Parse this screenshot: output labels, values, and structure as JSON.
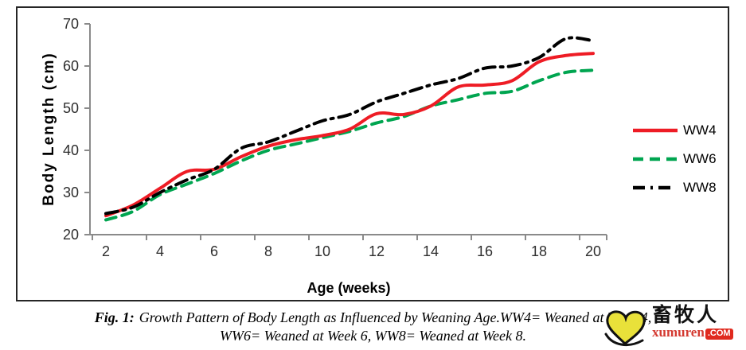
{
  "chart_data": {
    "type": "line",
    "title": "",
    "xlabel": "Age (weeks)",
    "ylabel": "Body Length (cm)",
    "x": [
      2,
      3,
      4,
      5,
      6,
      7,
      8,
      9,
      10,
      11,
      12,
      13,
      14,
      15,
      16,
      17,
      18,
      19,
      20
    ],
    "x_tick_labels": [
      "2",
      "4",
      "6",
      "8",
      "10",
      "12",
      "14",
      "16",
      "18",
      "20"
    ],
    "yticks": [
      20,
      30,
      40,
      50,
      60,
      70
    ],
    "ylim": [
      20,
      70
    ],
    "xlim": [
      2,
      20
    ],
    "grid": false,
    "legend_position": "right",
    "axis_color": "#8a8a8a",
    "tick_label_color": "#2e2e2e",
    "series": [
      {
        "name": "WW4",
        "color": "#ee1c25",
        "line_style": "solid",
        "values": [
          24.5,
          27,
          31,
          35,
          35.5,
          38.5,
          41,
          42.5,
          43.5,
          45,
          48.7,
          48.5,
          50.5,
          55,
          55.5,
          56.5,
          61,
          62.5,
          63
        ]
      },
      {
        "name": "WW6",
        "color": "#00a550",
        "line_style": "dashed",
        "values": [
          23.5,
          25.5,
          29.5,
          32,
          34.5,
          37.5,
          40,
          41.5,
          43,
          44.5,
          46.5,
          48,
          50.5,
          52,
          53.5,
          54,
          56.5,
          58.5,
          59
        ]
      },
      {
        "name": "WW8",
        "color": "#000000",
        "line_style": "dashdot",
        "values": [
          25,
          26.5,
          30,
          33,
          35.5,
          40.5,
          42,
          44.5,
          47,
          48.5,
          51.5,
          53.5,
          55.5,
          57,
          59.5,
          60,
          62,
          66.5,
          66
        ]
      }
    ]
  },
  "caption": {
    "prefix": "Fig. 1:",
    "line1": "Growth Pattern of Body Length as Influenced by Weaning Age.WW4= Weaned at Week 4,",
    "line2": "WW6= Weaned at Week 6, WW8= Weaned at Week 8."
  },
  "watermark": {
    "cn_text": "畜牧人",
    "domain": "xumuren",
    "tld": ".COM"
  }
}
